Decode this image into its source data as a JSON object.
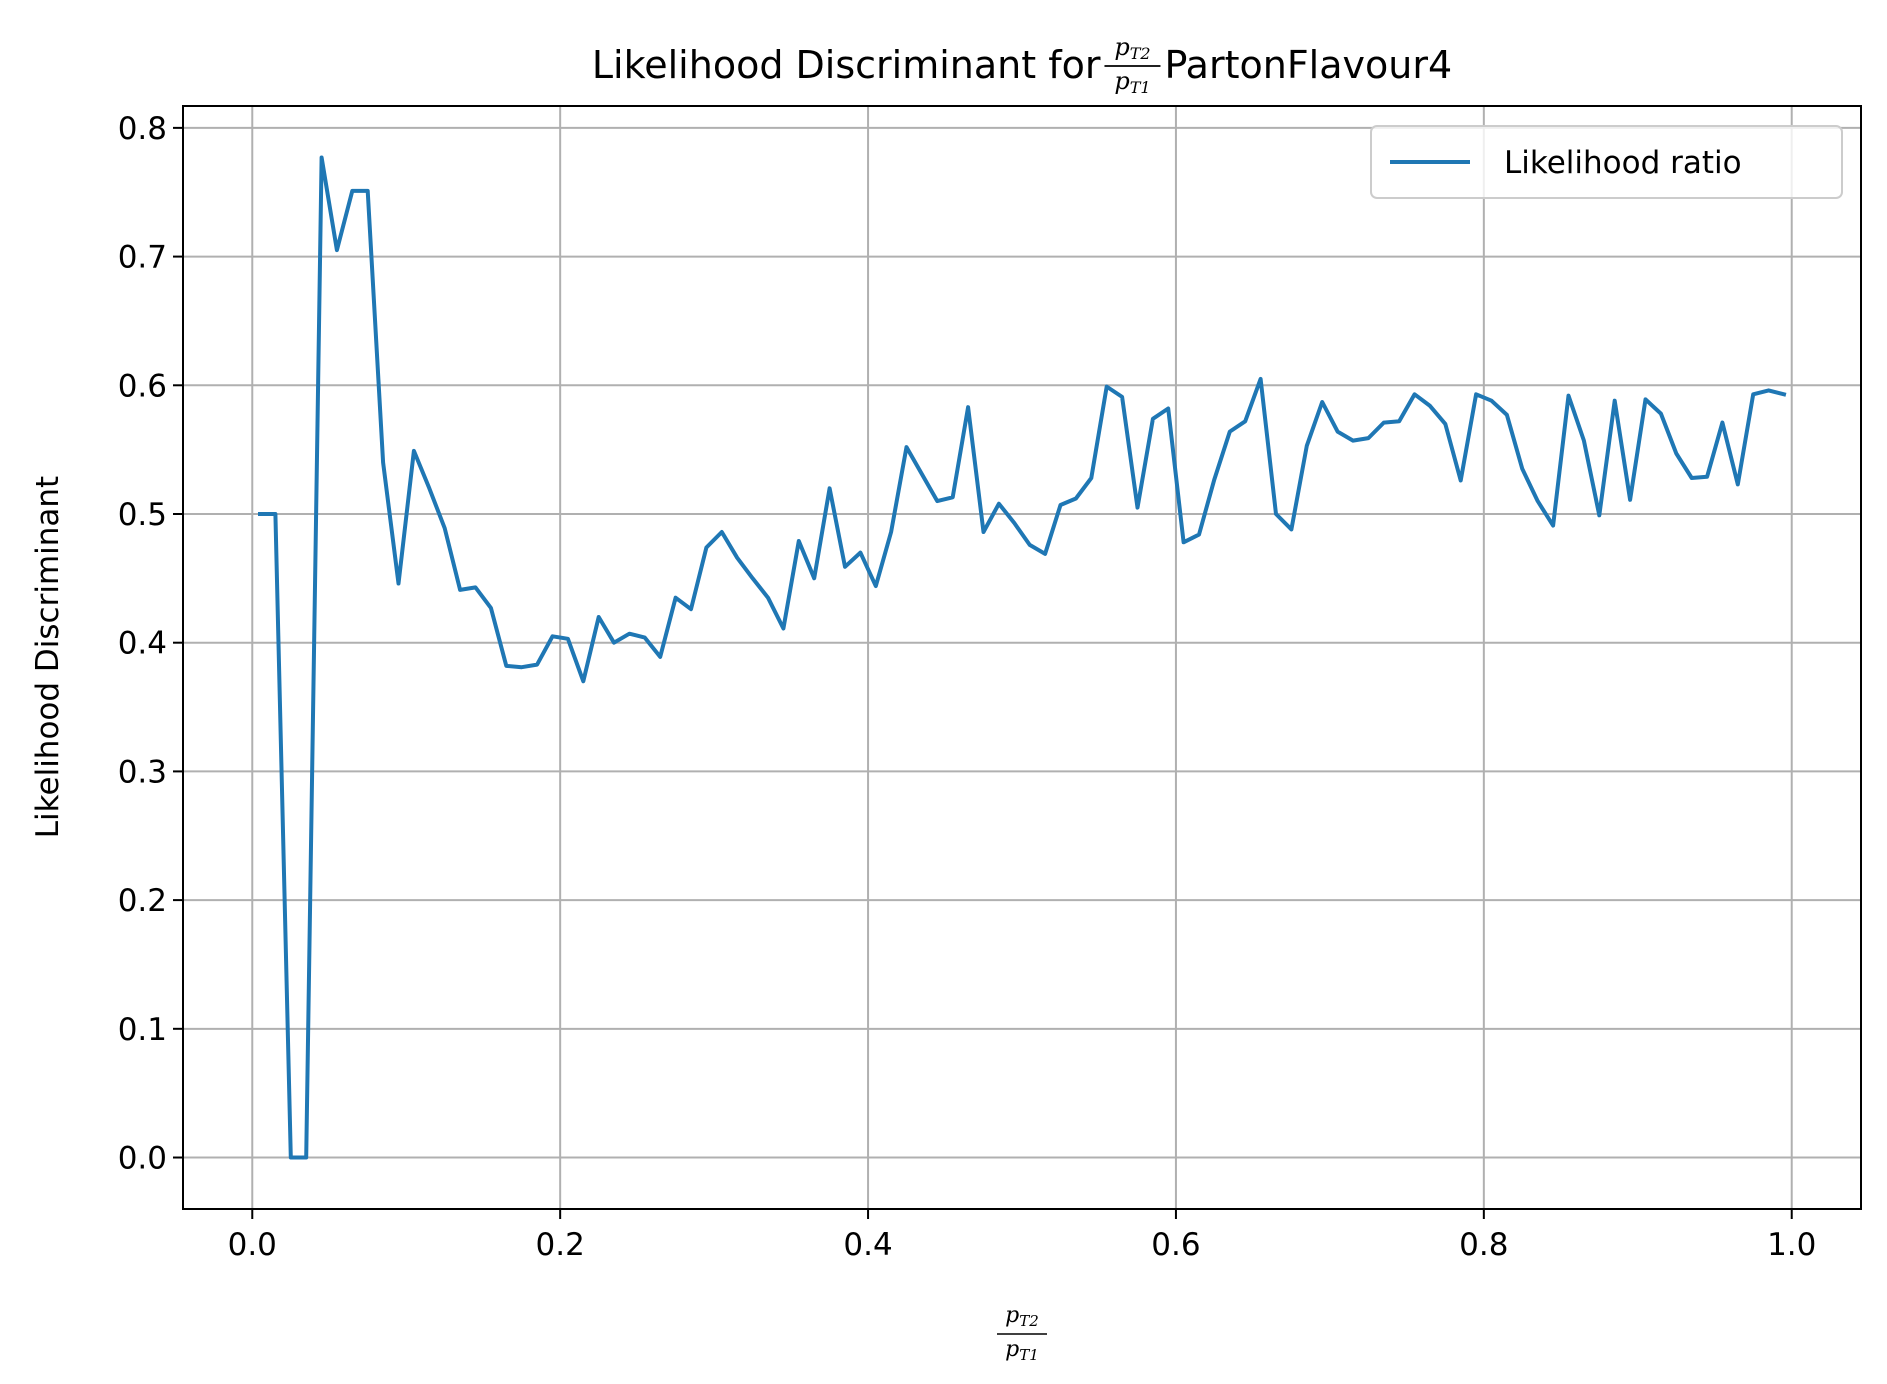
{
  "chart_data": {
    "type": "line",
    "title_prefix": "Likelihood Discriminant for ",
    "title_suffix": " PartonFlavour4",
    "frac": {
      "num_var": "p",
      "num_sub": "T2",
      "den_var": "p",
      "den_sub": "T1"
    },
    "ylabel": "Likelihood Discriminant",
    "xlim": [
      -0.045,
      1.045
    ],
    "ylim": [
      -0.04,
      0.817
    ],
    "xticks": [
      0.0,
      0.2,
      0.4,
      0.6,
      0.8,
      1.0
    ],
    "xtick_labels": [
      "0.0",
      "0.2",
      "0.4",
      "0.6",
      "0.8",
      "1.0"
    ],
    "yticks": [
      0.0,
      0.1,
      0.2,
      0.3,
      0.4,
      0.5,
      0.6,
      0.7,
      0.8
    ],
    "ytick_labels": [
      "0.0",
      "0.1",
      "0.2",
      "0.3",
      "0.4",
      "0.5",
      "0.6",
      "0.7",
      "0.8"
    ],
    "grid": true,
    "legend_position": "top-right",
    "series": [
      {
        "name": "Likelihood ratio",
        "color": "#1f77b4",
        "x": [
          0.005,
          0.015,
          0.025,
          0.035,
          0.045,
          0.055,
          0.065,
          0.075,
          0.085,
          0.095,
          0.105,
          0.115,
          0.125,
          0.135,
          0.145,
          0.155,
          0.165,
          0.175,
          0.185,
          0.195,
          0.205,
          0.215,
          0.225,
          0.235,
          0.245,
          0.255,
          0.265,
          0.275,
          0.285,
          0.295,
          0.305,
          0.315,
          0.325,
          0.335,
          0.345,
          0.355,
          0.365,
          0.375,
          0.385,
          0.395,
          0.405,
          0.415,
          0.425,
          0.435,
          0.445,
          0.455,
          0.465,
          0.475,
          0.485,
          0.495,
          0.505,
          0.515,
          0.525,
          0.535,
          0.545,
          0.555,
          0.565,
          0.575,
          0.585,
          0.595,
          0.605,
          0.615,
          0.625,
          0.635,
          0.645,
          0.655,
          0.665,
          0.675,
          0.685,
          0.695,
          0.705,
          0.715,
          0.725,
          0.735,
          0.745,
          0.755,
          0.765,
          0.775,
          0.785,
          0.795,
          0.805,
          0.815,
          0.825,
          0.835,
          0.845,
          0.855,
          0.865,
          0.875,
          0.885,
          0.895,
          0.905,
          0.915,
          0.925,
          0.935,
          0.945,
          0.955,
          0.965,
          0.975,
          0.985,
          0.995
        ],
        "y": [
          0.5,
          0.5,
          0.0,
          0.0,
          0.777,
          0.705,
          0.751,
          0.751,
          0.54,
          0.446,
          0.549,
          0.52,
          0.489,
          0.441,
          0.443,
          0.427,
          0.382,
          0.381,
          0.383,
          0.405,
          0.403,
          0.37,
          0.42,
          0.4,
          0.407,
          0.404,
          0.389,
          0.435,
          0.426,
          0.474,
          0.486,
          0.466,
          0.45,
          0.435,
          0.411,
          0.479,
          0.45,
          0.52,
          0.459,
          0.47,
          0.444,
          0.486,
          0.552,
          0.531,
          0.51,
          0.513,
          0.583,
          0.486,
          0.508,
          0.493,
          0.476,
          0.469,
          0.507,
          0.512,
          0.528,
          0.599,
          0.591,
          0.505,
          0.574,
          0.582,
          0.478,
          0.484,
          0.527,
          0.564,
          0.572,
          0.605,
          0.5,
          0.488,
          0.553,
          0.587,
          0.564,
          0.557,
          0.559,
          0.571,
          0.572,
          0.593,
          0.584,
          0.57,
          0.526,
          0.593,
          0.588,
          0.577,
          0.535,
          0.51,
          0.491,
          0.592,
          0.557,
          0.499,
          0.588,
          0.511,
          0.589,
          0.578,
          0.547,
          0.528,
          0.529,
          0.571,
          0.523,
          0.593,
          0.596,
          0.593
        ]
      }
    ]
  }
}
